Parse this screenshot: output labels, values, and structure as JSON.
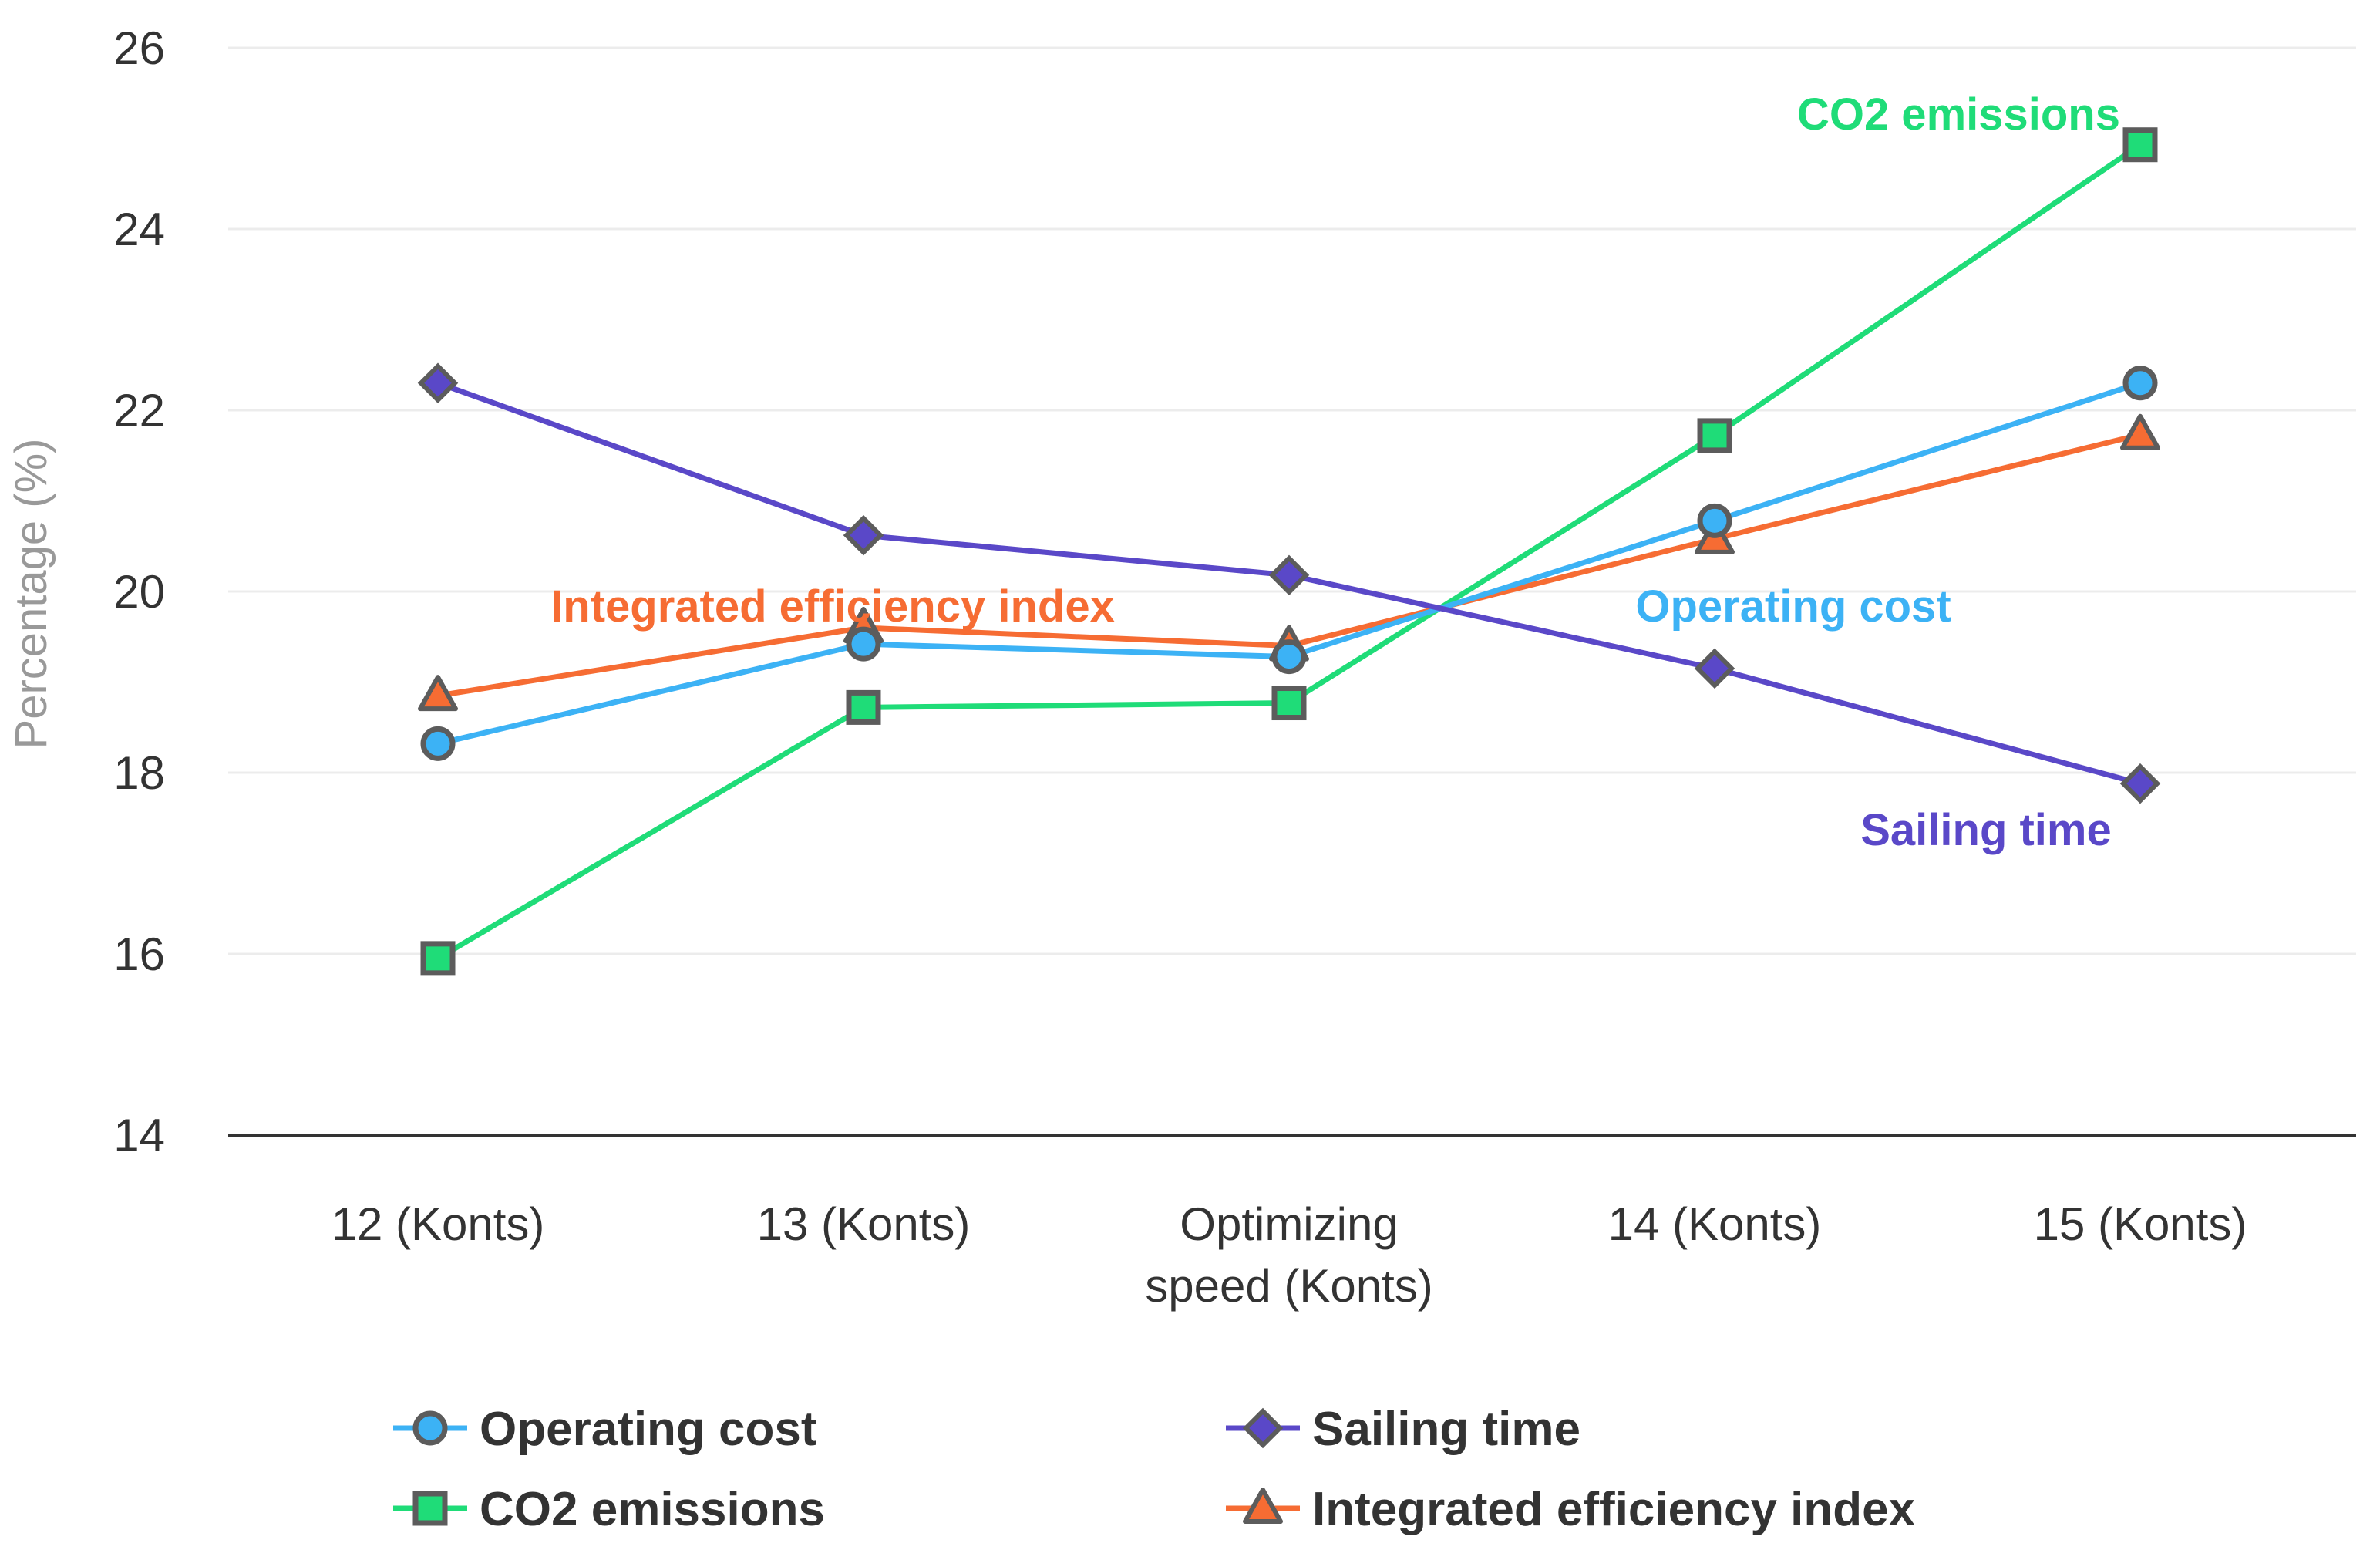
{
  "chart_data": {
    "type": "line",
    "title": "",
    "xlabel": "",
    "ylabel": "Percentage (%)",
    "ylim": [
      14,
      26
    ],
    "yticks": [
      14,
      16,
      18,
      20,
      22,
      24,
      26
    ],
    "grid": true,
    "categories": [
      [
        "12 (Konts)"
      ],
      [
        "13 (Konts)"
      ],
      [
        "Optimizing",
        "speed (Konts)"
      ],
      [
        "14 (Konts)"
      ],
      [
        "15 (Konts)"
      ]
    ],
    "series": [
      {
        "name": "Operating cost",
        "color": "#3cb2f5",
        "marker": "circle",
        "values": [
          18.32,
          19.42,
          19.28,
          20.78,
          22.3
        ]
      },
      {
        "name": "CO2 emissions",
        "color": "#1fdc78",
        "marker": "square",
        "values": [
          15.95,
          18.72,
          18.77,
          21.72,
          24.93
        ]
      },
      {
        "name": "Sailing time",
        "color": "#5a48c8",
        "marker": "diamond",
        "values": [
          22.3,
          20.62,
          20.18,
          19.15,
          17.88
        ]
      },
      {
        "name": "Integrated efficiency index",
        "color": "#f66c33",
        "marker": "triangle",
        "values": [
          18.85,
          19.6,
          19.4,
          20.58,
          21.73
        ]
      }
    ],
    "annotations": [
      {
        "text": "CO2 emissions",
        "series": "CO2 emissions"
      },
      {
        "text": "Integrated efficiency index",
        "series": "Integrated efficiency index"
      },
      {
        "text": "Operating cost",
        "series": "Operating cost"
      },
      {
        "text": "Sailing time",
        "series": "Sailing time"
      }
    ],
    "legend_position": "bottom"
  }
}
